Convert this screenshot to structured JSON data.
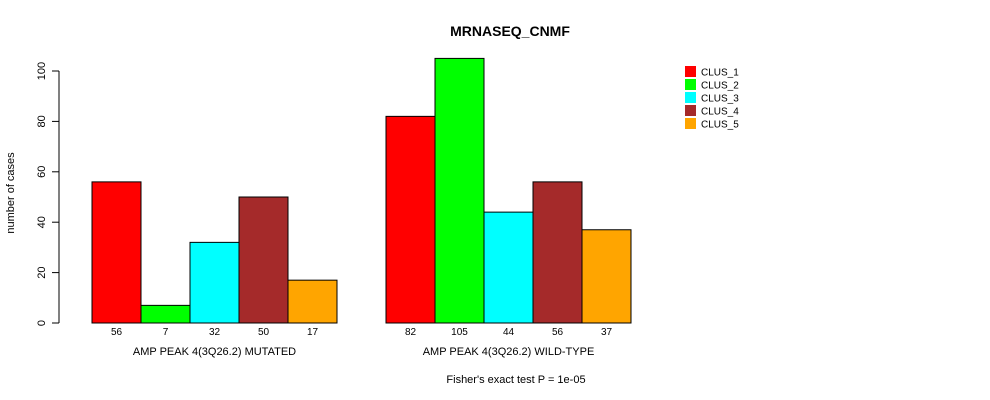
{
  "chart_data": {
    "type": "bar",
    "title": "MRNASEQ_CNMF",
    "ylabel": "number of cases",
    "ylim": [
      0,
      105
    ],
    "yticks": [
      0,
      20,
      40,
      60,
      80,
      100
    ],
    "groups": [
      "AMP PEAK  4(3Q26.2) MUTATED",
      "AMP PEAK  4(3Q26.2) WILD-TYPE"
    ],
    "series": [
      {
        "name": "CLUS_1",
        "color": "#ff0000",
        "values": [
          56,
          82
        ]
      },
      {
        "name": "CLUS_2",
        "color": "#00ff00",
        "values": [
          7,
          105
        ]
      },
      {
        "name": "CLUS_3",
        "color": "#00ffff",
        "values": [
          32,
          44
        ]
      },
      {
        "name": "CLUS_4",
        "color": "#a52a2a",
        "values": [
          50,
          56
        ]
      },
      {
        "name": "CLUS_5",
        "color": "#ffa500",
        "values": [
          17,
          37
        ]
      }
    ],
    "legend_position": "top-right",
    "footnote": "Fisher's exact test P = 1e-05"
  }
}
